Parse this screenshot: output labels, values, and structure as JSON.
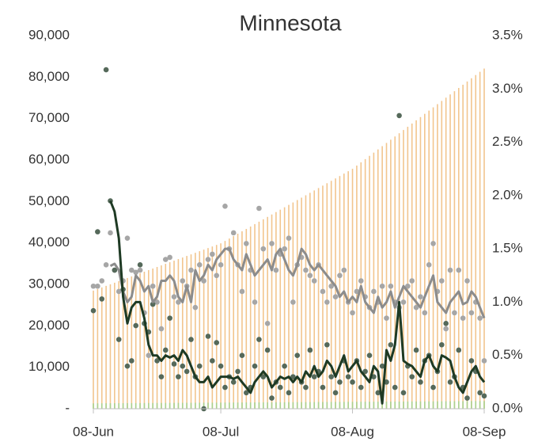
{
  "chart_data": {
    "type": "combo",
    "title": "Minnesota",
    "categories": [
      "08-Jun",
      null,
      null,
      null,
      null,
      null,
      null,
      null,
      null,
      null,
      null,
      null,
      null,
      null,
      null,
      null,
      null,
      null,
      null,
      null,
      null,
      null,
      null,
      null,
      null,
      null,
      null,
      null,
      null,
      null,
      "08-Jul",
      null,
      null,
      null,
      null,
      null,
      null,
      null,
      null,
      null,
      null,
      null,
      null,
      null,
      null,
      null,
      null,
      null,
      null,
      null,
      null,
      null,
      null,
      null,
      null,
      null,
      null,
      null,
      null,
      null,
      null,
      "08-Aug",
      null,
      null,
      null,
      null,
      null,
      null,
      null,
      null,
      null,
      null,
      null,
      null,
      null,
      null,
      null,
      null,
      null,
      null,
      null,
      null,
      null,
      null,
      null,
      null,
      null,
      null,
      null,
      null,
      null,
      null,
      "08-Sep"
    ],
    "ylim": [
      0,
      90000
    ],
    "yticks": [
      {
        "value": 0,
        "label": "-"
      },
      {
        "value": 10000,
        "label": "10,000"
      },
      {
        "value": 20000,
        "label": "20,000"
      },
      {
        "value": 30000,
        "label": "30,000"
      },
      {
        "value": 40000,
        "label": "40,000"
      },
      {
        "value": 50000,
        "label": "50,000"
      },
      {
        "value": 60000,
        "label": "60,000"
      },
      {
        "value": 70000,
        "label": "70,000"
      },
      {
        "value": 80000,
        "label": "80,000"
      },
      {
        "value": 90000,
        "label": "90,000"
      }
    ],
    "y2lim": [
      0,
      3.5
    ],
    "y2ticks": [
      {
        "value": 0,
        "label": "0.0%"
      },
      {
        "value": 0.5,
        "label": "0.5%"
      },
      {
        "value": 1,
        "label": "1.0%"
      },
      {
        "value": 1.5,
        "label": "1.5%"
      },
      {
        "value": 2,
        "label": "2.0%"
      },
      {
        "value": 2.5,
        "label": "2.5%"
      },
      {
        "value": 3,
        "label": "3.0%"
      },
      {
        "value": 3.5,
        "label": "3.5%"
      }
    ],
    "grid": false,
    "series": [
      {
        "type": "bar",
        "color": "#f2c58e",
        "axis": "y",
        "values": [
          28500,
          28880,
          29260,
          29640,
          30020,
          30400,
          30780,
          31160,
          31540,
          31920,
          32300,
          32680,
          33060,
          33440,
          33820,
          34200,
          34580,
          34960,
          35340,
          35720,
          36100,
          36480,
          36860,
          37240,
          37620,
          38000,
          38380,
          38760,
          39140,
          39520,
          39900,
          40480,
          41060,
          41640,
          42220,
          42800,
          43380,
          43960,
          44540,
          45120,
          45700,
          46280,
          46860,
          47440,
          48020,
          48600,
          49180,
          49760,
          50340,
          50920,
          51500,
          52080,
          52660,
          53240,
          53820,
          54400,
          54980,
          55560,
          56140,
          56720,
          57300,
          57880,
          58660,
          59440,
          60220,
          61000,
          61780,
          62560,
          63340,
          64120,
          64900,
          65680,
          66460,
          67240,
          68020,
          68800,
          69580,
          70360,
          71140,
          71920,
          72700,
          73480,
          74260,
          75040,
          75820,
          76600,
          77380,
          78160,
          78940,
          79720,
          80500,
          81280,
          82060
        ]
      },
      {
        "type": "bar",
        "color": "#a9d18e",
        "axis": "y",
        "values": [
          1300,
          1306,
          1312,
          1318,
          1324,
          1330,
          1336,
          1342,
          1348,
          1354,
          1360,
          1366,
          1372,
          1378,
          1384,
          1390,
          1396,
          1402,
          1408,
          1414,
          1420,
          1426,
          1432,
          1438,
          1444,
          1450,
          1456,
          1462,
          1468,
          1474,
          1480,
          1486,
          1492,
          1498,
          1504,
          1510,
          1516,
          1522,
          1528,
          1534,
          1540,
          1546,
          1552,
          1558,
          1564,
          1570,
          1576,
          1582,
          1588,
          1594,
          1600,
          1606,
          1612,
          1618,
          1624,
          1630,
          1636,
          1642,
          1648,
          1654,
          1660,
          1666,
          1672,
          1678,
          1684,
          1690,
          1696,
          1702,
          1708,
          1714,
          1720,
          1726,
          1732,
          1738,
          1744,
          1750,
          1756,
          1762,
          1768,
          1774,
          1780,
          1786,
          1792,
          1798,
          1804,
          1810,
          1816,
          1822,
          1828,
          1834,
          1840,
          1846,
          1852
        ]
      },
      {
        "type": "scatter",
        "color": "#a6a6a6",
        "axis": "y2",
        "values": [
          1.15,
          1.15,
          1.2,
          1.35,
          1.65,
          1.3,
          1.1,
          1.2,
          1.6,
          1.3,
          1.28,
          1.3,
          0.9,
          0.5,
          1.15,
          1.0,
          0.75,
          1.4,
          1.42,
          1.05,
          1.0,
          1.2,
          1.15,
          1.3,
          0.95,
          1.35,
          1.2,
          1.4,
          1.45,
          1.25,
          1.35,
          1.9,
          1.5,
          1.65,
          1.35,
          1.1,
          1.55,
          1.3,
          1.0,
          1.88,
          1.5,
          0.8,
          1.55,
          1.3,
          1.45,
          1.5,
          1.6,
          1.0,
          1.35,
          1.42,
          1.3,
          1.25,
          1.2,
          1.35,
          1.1,
          1.0,
          1.15,
          1.05,
          1.25,
          1.3,
          1.0,
          0.9,
          1.1,
          1.2,
          1.05,
          0.95,
          1.1,
          1.0,
          1.15,
          0.85,
          1.15,
          1.0,
          0.95,
          1.0,
          1.15,
          1.2,
          0.95,
          1.05,
          0.9,
          1.35,
          1.55,
          1.1,
          1.2,
          0.75,
          1.3,
          0.9,
          1.3,
          0.85,
          1.2,
          0.9,
          1.0,
          0.85,
          0.45
        ]
      },
      {
        "type": "scatter",
        "color": "#55695a",
        "axis": "y2",
        "values": [
          0.92,
          1.66,
          1.03,
          3.18,
          1.95,
          1.3,
          0.65,
          1.12,
          0.4,
          0.45,
          0.78,
          1.35,
          0.8,
          0.72,
          0.98,
          0.45,
          0.3,
          0.55,
          0.85,
          0.42,
          0.3,
          0.4,
          0.35,
          0.65,
          0.3,
          0.4,
          0.0,
          0.68,
          0.45,
          0.62,
          0.4,
          0.2,
          0.3,
          0.25,
          0.35,
          0.5,
          0.15,
          0.2,
          0.4,
          0.65,
          0.3,
          0.55,
          0.1,
          0.25,
          0.2,
          0.4,
          0.15,
          0.3,
          0.5,
          0.25,
          0.2,
          0.55,
          0.3,
          0.35,
          0.2,
          0.6,
          0.3,
          0.15,
          0.25,
          0.45,
          0.3,
          0.25,
          0.45,
          0.2,
          0.35,
          0.5,
          0.3,
          0.15,
          0.4,
          0.25,
          0.6,
          0.2,
          2.75,
          0.15,
          0.4,
          0.3,
          0.55,
          0.25,
          0.45,
          0.5,
          0.2,
          0.35,
          0.6,
          0.8,
          0.25,
          0.3,
          0.55,
          0.2,
          0.1,
          0.45,
          0.35,
          0.15,
          0.12
        ]
      },
      {
        "type": "line",
        "color": "#8c8c8c",
        "axis": "y2",
        "values": [
          null,
          null,
          null,
          null,
          1.34,
          1.36,
          1.3,
          1.1,
          1.0,
          1.05,
          1.25,
          1.2,
          1.1,
          1.15,
          1.0,
          1.05,
          1.2,
          1.2,
          1.25,
          1.2,
          1.05,
          1.0,
          1.15,
          1.0,
          1.3,
          1.2,
          1.25,
          1.35,
          1.3,
          1.4,
          1.45,
          1.5,
          1.5,
          1.4,
          1.35,
          1.3,
          1.45,
          1.35,
          1.25,
          1.3,
          1.35,
          1.4,
          1.3,
          1.45,
          1.5,
          1.4,
          1.3,
          1.25,
          1.35,
          1.5,
          1.45,
          1.35,
          1.3,
          1.35,
          1.3,
          1.25,
          1.2,
          1.15,
          1.05,
          1.1,
          1.0,
          1.05,
          1.0,
          1.15,
          1.0,
          0.95,
          0.9,
          1.05,
          0.95,
          1.0,
          1.1,
          0.95,
          1.05,
          1.15,
          1.1,
          1.05,
          1.0,
          0.95,
          1.05,
          1.15,
          1.25,
          1.0,
          0.95,
          0.9,
          1.0,
          1.05,
          1.1,
          0.98,
          1.0,
          1.1,
          1.05,
          0.95,
          0.85
        ]
      },
      {
        "type": "line",
        "color": "#1e3a24",
        "axis": "y2",
        "values": [
          null,
          null,
          null,
          null,
          1.95,
          1.85,
          1.6,
          1.05,
          0.8,
          0.95,
          1.0,
          1.0,
          0.85,
          0.6,
          0.5,
          0.5,
          0.45,
          0.5,
          0.48,
          0.5,
          0.45,
          0.55,
          0.5,
          0.4,
          0.3,
          0.25,
          0.25,
          0.3,
          0.2,
          0.25,
          0.3,
          0.3,
          0.3,
          0.28,
          0.3,
          0.25,
          0.2,
          0.15,
          0.25,
          0.3,
          0.35,
          0.3,
          0.2,
          0.25,
          0.3,
          0.28,
          0.3,
          0.25,
          0.3,
          0.25,
          0.35,
          0.3,
          0.4,
          0.3,
          0.35,
          0.45,
          0.4,
          0.3,
          0.4,
          0.5,
          0.35,
          0.4,
          0.45,
          0.35,
          0.3,
          0.25,
          0.4,
          0.35,
          0.05,
          0.55,
          0.45,
          0.6,
          1.0,
          0.45,
          0.42,
          0.4,
          0.35,
          0.3,
          0.45,
          0.5,
          0.4,
          0.35,
          0.5,
          0.48,
          0.45,
          0.3,
          0.2,
          0.15,
          0.25,
          0.35,
          0.4,
          0.3,
          0.25
        ]
      }
    ]
  }
}
